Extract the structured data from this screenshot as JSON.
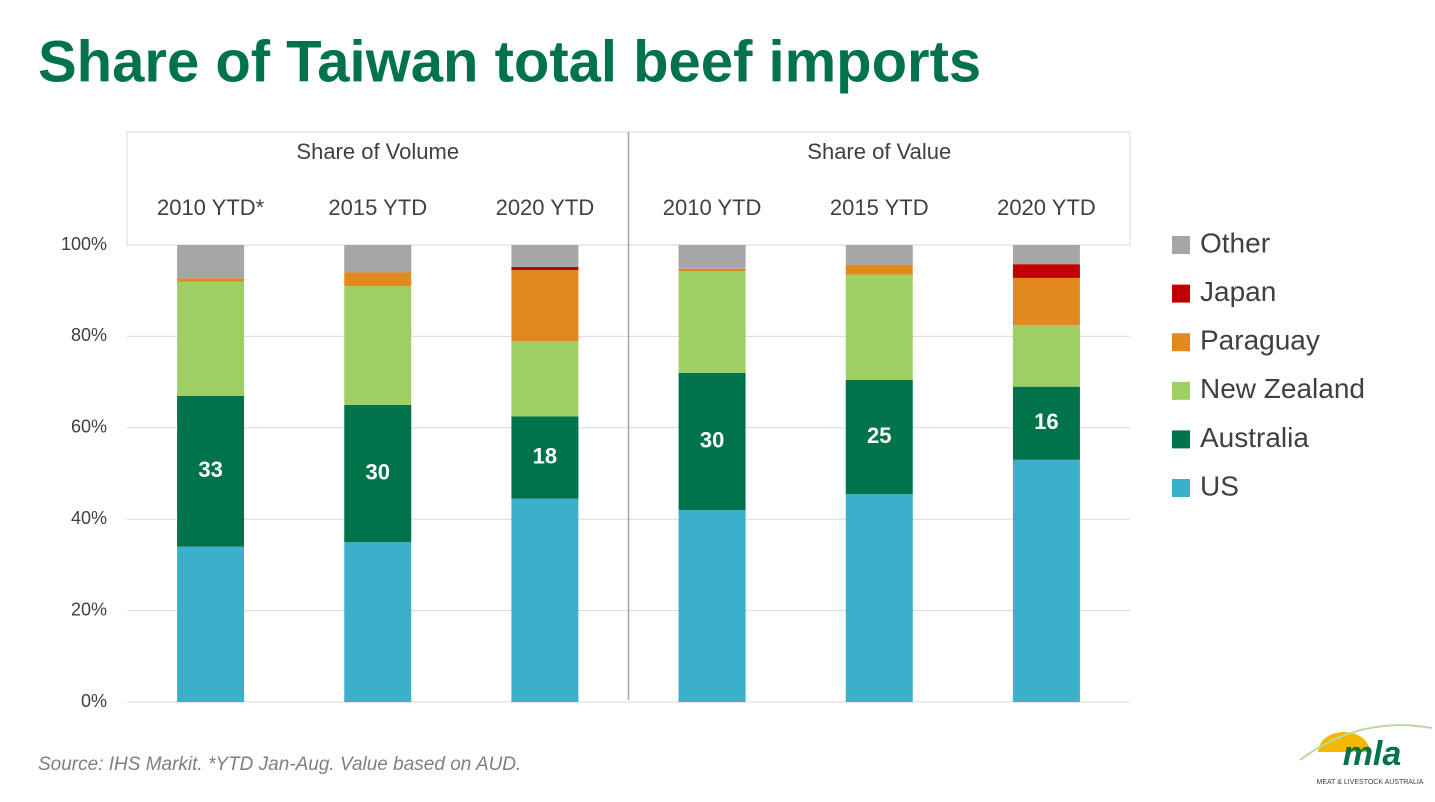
{
  "chart_data": {
    "type": "stacked_bar",
    "title": "Share of Taiwan total beef imports",
    "groups": [
      {
        "name": "Share of Volume",
        "categories": [
          "2010 YTD*",
          "2015 YTD",
          "2020 YTD"
        ]
      },
      {
        "name": "Share of Value",
        "categories": [
          "2010 YTD",
          "2015 YTD",
          "2020 YTD"
        ]
      }
    ],
    "series": [
      {
        "name": "US",
        "color": "#3ab0c9",
        "values": [
          34,
          35,
          44.5,
          42,
          45.5,
          53
        ]
      },
      {
        "name": "Australia",
        "color": "#00734a",
        "values": [
          33,
          30,
          18,
          30,
          25,
          16
        ],
        "show_labels": true
      },
      {
        "name": "New Zealand",
        "color": "#9ecf65",
        "values": [
          25,
          26,
          16.5,
          22.3,
          23,
          13.5
        ]
      },
      {
        "name": "Paraguay",
        "color": "#e08a1e",
        "values": [
          0.7,
          3,
          15.5,
          0.5,
          2.2,
          10.3
        ]
      },
      {
        "name": "Japan",
        "color": "#c00000",
        "values": [
          0,
          0,
          0.7,
          0,
          0,
          3
        ]
      },
      {
        "name": "Other",
        "color": "#a6a6a6",
        "values": [
          7.3,
          6,
          4.8,
          5.2,
          4.3,
          4.2
        ]
      }
    ],
    "ylim": [
      0,
      100
    ],
    "yticks": [
      {
        "value": 0,
        "label": "0%"
      },
      {
        "value": 20,
        "label": "20%"
      },
      {
        "value": 40,
        "label": "40%"
      },
      {
        "value": 60,
        "label": "60%"
      },
      {
        "value": 80,
        "label": "80%"
      },
      {
        "value": 100,
        "label": "100%"
      }
    ],
    "grid": true,
    "legend": "right",
    "source": "Source: IHS Markit. *YTD Jan-Aug. Value based on AUD."
  },
  "logo": {
    "name": "mla",
    "tagline": "MEAT & LIVESTOCK AUSTRALIA"
  }
}
